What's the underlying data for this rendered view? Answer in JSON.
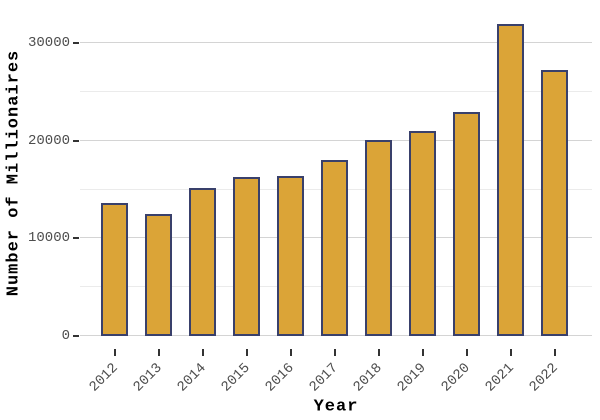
{
  "chart_data": {
    "type": "bar",
    "title": "",
    "xlabel": "Year",
    "ylabel": "Number of Millionaires",
    "categories": [
      "2012",
      "2013",
      "2014",
      "2015",
      "2016",
      "2017",
      "2018",
      "2019",
      "2020",
      "2021",
      "2022"
    ],
    "values": [
      13650,
      12500,
      15150,
      16250,
      16350,
      18000,
      20100,
      21000,
      22950,
      31950,
      27300
    ],
    "ylim": [
      0,
      33500
    ],
    "yticks_major": [
      0,
      10000,
      20000,
      30000
    ],
    "yticks_minor": [
      5000,
      15000,
      25000
    ],
    "grid": "on",
    "legend": "none",
    "colors": {
      "bar_fill": "#DBA437",
      "bar_border": "#39406B",
      "grid_major": "#D4D4D4",
      "grid_minor": "#EBEBEB",
      "tick_text": "#4D4D4D",
      "axis_title_text": "#000000",
      "background": "#FFFFFF"
    }
  }
}
